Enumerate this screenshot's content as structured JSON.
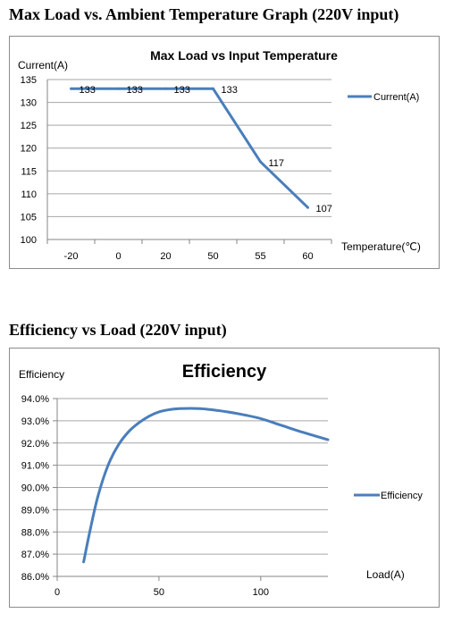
{
  "page": {
    "heading1": "Max Load vs. Ambient Temperature Graph (220V input)",
    "heading2": "Efficiency vs Load (220V input)"
  },
  "colors": {
    "series": "#4a7ebb",
    "grid": "#a6a6a6",
    "axis": "#868686",
    "border": "#8c8c8c"
  },
  "chart_data": [
    {
      "type": "line",
      "title": "Max Load vs Input Temperature",
      "xlabel": "Temperature(℃)",
      "ylabel": "Current(A)",
      "categories": [
        "-20",
        "0",
        "20",
        "50",
        "55",
        "60"
      ],
      "series": [
        {
          "name": "Current(A)",
          "values": [
            133,
            133,
            133,
            133,
            117,
            107
          ]
        }
      ],
      "data_labels": [
        "133",
        "133",
        "133",
        "133",
        "117",
        "107"
      ],
      "ylim": [
        100,
        135
      ],
      "yticks": [
        "100",
        "105",
        "110",
        "115",
        "120",
        "125",
        "130",
        "135"
      ],
      "grid": true,
      "legend": "right"
    },
    {
      "type": "line",
      "title": "Efficiency",
      "xlabel": "Load(A)",
      "ylabel": "Efficiency",
      "x": [
        13,
        16,
        20,
        25,
        30,
        35,
        40,
        45,
        50,
        55,
        60,
        70,
        80,
        90,
        100,
        110,
        120,
        133
      ],
      "series": [
        {
          "name": "Efficiency",
          "values": [
            86.65,
            88.0,
            89.6,
            91.0,
            91.9,
            92.5,
            92.9,
            93.2,
            93.4,
            93.5,
            93.55,
            93.55,
            93.45,
            93.3,
            93.1,
            92.8,
            92.5,
            92.15
          ]
        }
      ],
      "xlim": [
        0,
        133
      ],
      "xticks": [
        "0",
        "50",
        "100"
      ],
      "ylim": [
        86.0,
        94.0
      ],
      "yticks": [
        "86.0%",
        "87.0%",
        "88.0%",
        "89.0%",
        "90.0%",
        "91.0%",
        "92.0%",
        "93.0%",
        "94.0%"
      ],
      "grid": true,
      "legend": "right"
    }
  ]
}
